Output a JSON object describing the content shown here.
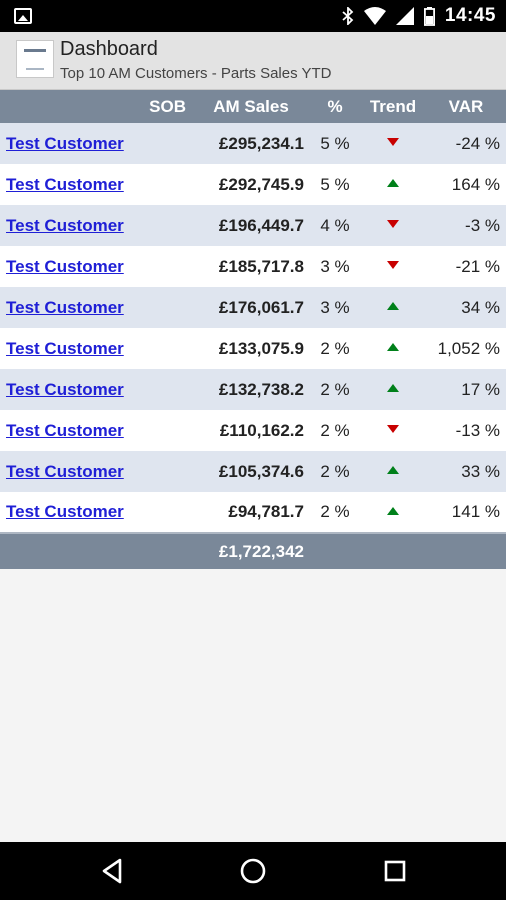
{
  "status_bar": {
    "time": "14:45",
    "icons": [
      "image-icon",
      "bluetooth-icon",
      "wifi-icon",
      "signal-icon",
      "battery-icon"
    ]
  },
  "app_bar": {
    "title": "Dashboard",
    "subtitle": "Top 10 AM Customers - Parts Sales YTD",
    "logo": "volvo-logo"
  },
  "table": {
    "headers": {
      "name": "",
      "sob": "SOB",
      "sales": "AM Sales",
      "pct": "%",
      "trend": "Trend",
      "var": "VAR"
    },
    "rows": [
      {
        "name": "Test Customer",
        "sob": "",
        "sales": "£295,234.1",
        "pct": "5 %",
        "trend": "down",
        "var": "-24 %"
      },
      {
        "name": "Test Customer",
        "sob": "",
        "sales": "£292,745.9",
        "pct": "5 %",
        "trend": "up",
        "var": "164 %"
      },
      {
        "name": "Test Customer",
        "sob": "",
        "sales": "£196,449.7",
        "pct": "4 %",
        "trend": "down",
        "var": "-3 %"
      },
      {
        "name": "Test Customer",
        "sob": "",
        "sales": "£185,717.8",
        "pct": "3 %",
        "trend": "down",
        "var": "-21 %"
      },
      {
        "name": "Test Customer",
        "sob": "",
        "sales": "£176,061.7",
        "pct": "3 %",
        "trend": "up",
        "var": "34 %"
      },
      {
        "name": "Test Customer",
        "sob": "",
        "sales": "£133,075.9",
        "pct": "2 %",
        "trend": "up",
        "var": "1,052 %"
      },
      {
        "name": "Test Customer",
        "sob": "",
        "sales": "£132,738.2",
        "pct": "2 %",
        "trend": "up",
        "var": "17 %"
      },
      {
        "name": "Test Customer",
        "sob": "",
        "sales": "£110,162.2",
        "pct": "2 %",
        "trend": "down",
        "var": "-13 %"
      },
      {
        "name": "Test Customer",
        "sob": "",
        "sales": "£105,374.6",
        "pct": "2 %",
        "trend": "up",
        "var": "33 %"
      },
      {
        "name": "Test Customer",
        "sob": "",
        "sales": "£94,781.7",
        "pct": "2 %",
        "trend": "up",
        "var": "141 %"
      }
    ],
    "total": "£1,722,342"
  },
  "colors": {
    "header_bg": "#7a8899",
    "row_alt": "#dfe5ef",
    "link": "#1f1fd6",
    "trend_up": "#00801a",
    "trend_down": "#c80000"
  },
  "nav_bar": {
    "buttons": [
      "back-icon",
      "home-icon",
      "recent-apps-icon"
    ]
  }
}
